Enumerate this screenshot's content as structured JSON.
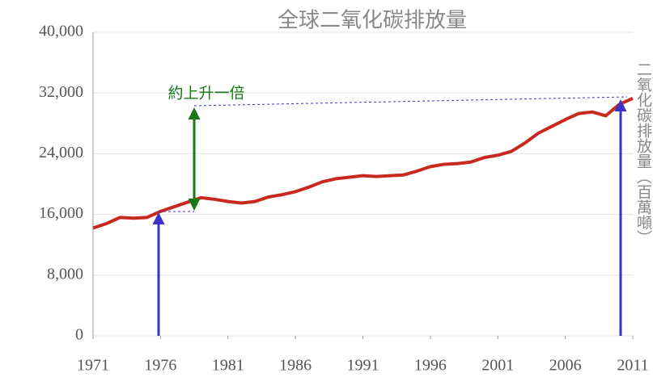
{
  "chart_data": {
    "type": "line",
    "title": "全球二氧化碳排放量",
    "y_label": "二氧化碳排放量（百萬噸）",
    "annotation": "約上升一倍",
    "x": [
      1971,
      1972,
      1973,
      1974,
      1975,
      1976,
      1977,
      1978,
      1979,
      1980,
      1981,
      1982,
      1983,
      1984,
      1985,
      1986,
      1987,
      1988,
      1989,
      1990,
      1991,
      1992,
      1993,
      1994,
      1995,
      1996,
      1997,
      1998,
      1999,
      2000,
      2001,
      2002,
      2003,
      2004,
      2005,
      2006,
      2007,
      2008,
      2009,
      2010,
      2011
    ],
    "series": [
      {
        "color": "#c8281e",
        "values": [
          14200,
          14800,
          15600,
          15500,
          15600,
          16400,
          17000,
          17600,
          18200,
          18000,
          17700,
          17500,
          17700,
          18300,
          18600,
          19000,
          19600,
          20300,
          20700,
          20900,
          21100,
          21000,
          21100,
          21200,
          21700,
          22300,
          22600,
          22700,
          22900,
          23500,
          23800,
          24300,
          25400,
          26700,
          27600,
          28500,
          29300,
          29500,
          29000,
          30500,
          31300
        ]
      }
    ],
    "xlim": [
      1971,
      2011
    ],
    "xticks": [
      1971,
      1976,
      1981,
      1986,
      1991,
      1996,
      2001,
      2006,
      2011
    ],
    "ylim": [
      0,
      40000
    ],
    "yticks": [
      0,
      {
        "value": 8000,
        "label": "8,000"
      },
      {
        "value": 16000,
        "label": "16,000"
      },
      {
        "value": 24000,
        "label": "24,000"
      },
      {
        "value": 32000,
        "label": "32,000"
      },
      {
        "value": 40000,
        "label": "40,000"
      }
    ],
    "grid": true
  }
}
